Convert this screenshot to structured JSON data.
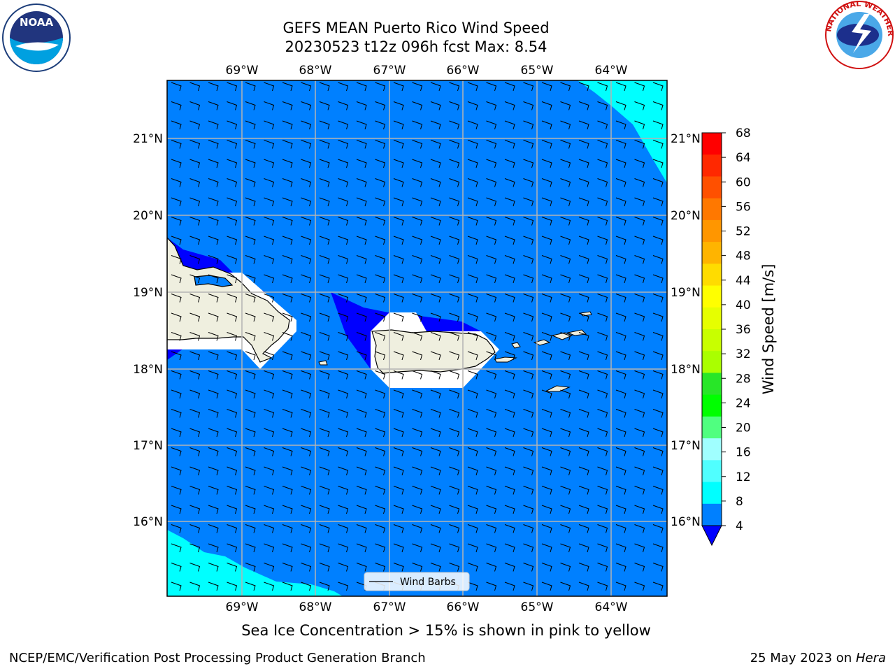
{
  "title": {
    "line1": "GEFS MEAN Puerto Rico Wind Speed",
    "line2": "20230523 t12z 096h fcst   Max: 8.54"
  },
  "map": {
    "lon_labels": [
      "69°W",
      "68°W",
      "67°W",
      "66°W",
      "65°W",
      "64°W"
    ],
    "lat_labels": [
      "21°N",
      "20°N",
      "19°N",
      "18°N",
      "17°N",
      "16°N"
    ],
    "legend_label": "Wind Barbs",
    "colors": {
      "speed_4_8": "#0080ff",
      "speed_8_12": "#00ffff",
      "below_4": "#0000ff",
      "land": "#efefdf",
      "grid": "#b4b4b4"
    }
  },
  "colorbar": {
    "label": "Wind Speed [m/s]",
    "ticks": [
      "68",
      "64",
      "60",
      "56",
      "52",
      "48",
      "44",
      "40",
      "36",
      "32",
      "28",
      "24",
      "20",
      "16",
      "12",
      "8",
      "4"
    ],
    "colors": [
      "#ff0000",
      "#ff2800",
      "#ff5000",
      "#ff7800",
      "#ff9600",
      "#ffb400",
      "#ffdc00",
      "#ffff00",
      "#e6ff00",
      "#c8ff00",
      "#aaff00",
      "#28e628",
      "#00ff00",
      "#50ff80",
      "#a0ffff",
      "#50ffff",
      "#00ffff",
      "#0080ff"
    ],
    "extend_color": "#0000ff"
  },
  "caption": "Sea Ice Concentration > 15% is shown in pink to yellow",
  "footer": {
    "left": "NCEP/EMC/Verification Post Processing Product Generation Branch",
    "date": "25 May 2023 on ",
    "host": "Hera"
  },
  "logos": {
    "noaa_text": "NOAA",
    "nws_text": "NATIONAL WEATHER SERVICE"
  }
}
